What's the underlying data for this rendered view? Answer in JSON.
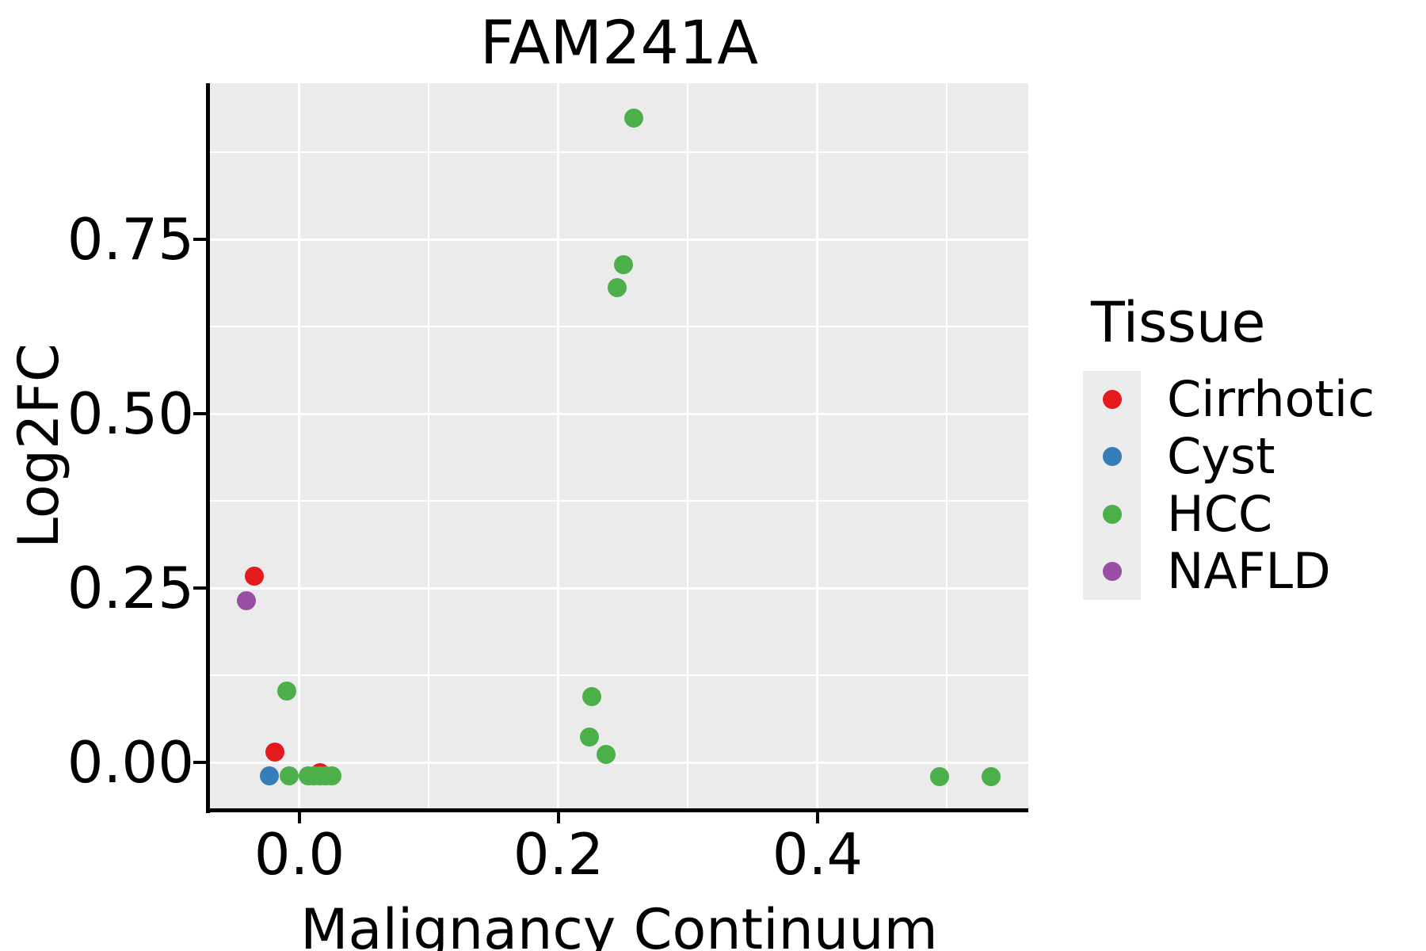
{
  "chart_data": {
    "type": "scatter",
    "title": "FAM241A",
    "xlabel": "Malignancy Continuum",
    "ylabel": "Log2FC",
    "xlim": [
      -0.0691,
      0.5627
    ],
    "ylim": [
      -0.067,
      0.9739
    ],
    "xticks": {
      "values": [
        0.0,
        0.2,
        0.4
      ],
      "labels": [
        "0.0",
        "0.2",
        "0.4"
      ]
    },
    "yticks": {
      "values": [
        0.0,
        0.25,
        0.5,
        0.75
      ],
      "labels": [
        "0.00",
        "0.25",
        "0.50",
        "0.75"
      ]
    },
    "xticks_minor": [
      0.1,
      0.3,
      0.5
    ],
    "yticks_minor": [
      0.125,
      0.375,
      0.625,
      0.875
    ],
    "grid": {
      "major": true,
      "minor": true,
      "color": "#ffffff"
    },
    "style": {
      "panel_background": "#ebebeb",
      "spine_color": "#000000",
      "text_color": "#000000",
      "marker_diameter": 24,
      "legend_key_background": "#ececec"
    },
    "legend": {
      "title": "Tissue",
      "position": "right",
      "entries": [
        {
          "label": "Cirrhotic",
          "color": "#e41a1c"
        },
        {
          "label": "Cyst",
          "color": "#377eb8"
        },
        {
          "label": "HCC",
          "color": "#4daf4a"
        },
        {
          "label": "NAFLD",
          "color": "#984ea3"
        }
      ]
    },
    "series": [
      {
        "name": "Cirrhotic",
        "color": "#e41a1c",
        "points": [
          [
            -0.035,
            0.267
          ],
          [
            -0.019,
            0.015
          ],
          [
            0.016,
            -0.015
          ]
        ]
      },
      {
        "name": "Cyst",
        "color": "#377eb8",
        "points": [
          [
            -0.023,
            -0.019
          ]
        ]
      },
      {
        "name": "NAFLD",
        "color": "#984ea3",
        "points": [
          [
            -0.041,
            0.232
          ]
        ]
      },
      {
        "name": "HCC",
        "color": "#4daf4a",
        "points": [
          [
            0.258,
            0.924
          ],
          [
            0.25,
            0.714
          ],
          [
            0.245,
            0.681
          ],
          [
            -0.01,
            0.102
          ],
          [
            0.226,
            0.094
          ],
          [
            0.224,
            0.036
          ],
          [
            0.237,
            0.011
          ],
          [
            -0.008,
            -0.019
          ],
          [
            0.007,
            -0.019
          ],
          [
            0.011,
            -0.019
          ],
          [
            0.016,
            -0.019
          ],
          [
            0.02,
            -0.019
          ],
          [
            0.025,
            -0.019
          ],
          [
            0.494,
            -0.02
          ],
          [
            0.534,
            -0.02
          ]
        ]
      }
    ],
    "draw_order": [
      "Cirrhotic",
      "Cyst",
      "NAFLD",
      "HCC"
    ]
  }
}
